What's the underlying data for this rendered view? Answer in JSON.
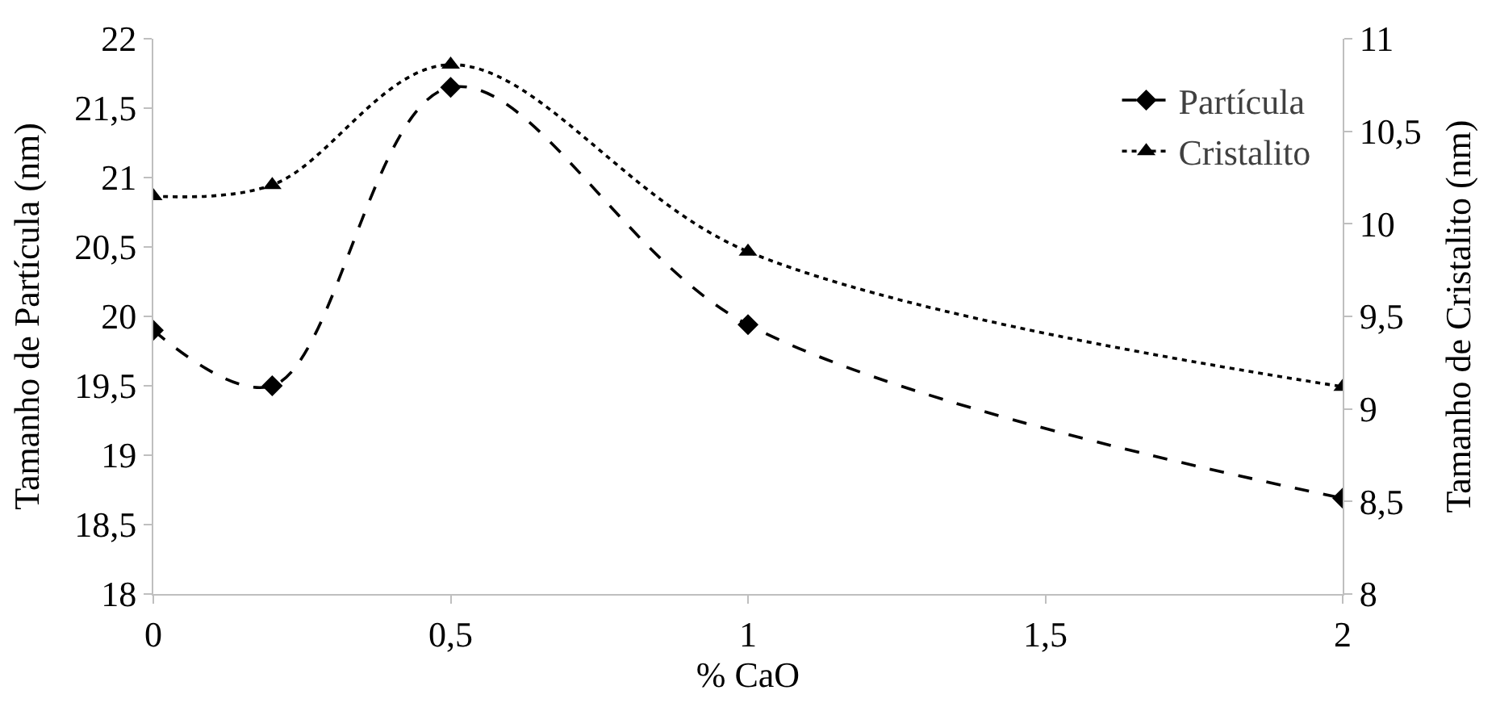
{
  "chart_data": {
    "type": "line",
    "xlabel": "% CaO",
    "ylabel": "Tamanho de Partícula (nm)",
    "y2label": "Tamanho de Cristalito (nm)",
    "x": [
      0,
      0.2,
      0.5,
      1,
      2
    ],
    "series": [
      {
        "name": "Partícula",
        "color": "#000000",
        "values": [
          19.9,
          19.5,
          21.65,
          19.94,
          18.69
        ],
        "marker": "diamond",
        "line_style": "dashed"
      },
      {
        "name": "Cristalito",
        "color": "#000000",
        "values": [
          10.15,
          10.21,
          10.86,
          9.85,
          9.12
        ],
        "marker": "triangle",
        "line_style": "dotted",
        "axis": "y2"
      }
    ],
    "xlim": [
      0,
      2
    ],
    "xticks": [
      0,
      {
        "value": 0.5,
        "label": "0,5"
      },
      1,
      {
        "value": 1.5,
        "label": "1,5"
      },
      2
    ],
    "ylim": [
      18,
      22
    ],
    "yticks": [
      18,
      {
        "value": 18.5,
        "label": "18,5"
      },
      19,
      {
        "value": 19.5,
        "label": "19,5"
      },
      20,
      {
        "value": 20.5,
        "label": "20,5"
      },
      21,
      {
        "value": 21.5,
        "label": "21,5"
      },
      22
    ],
    "y2lim": [
      8,
      11
    ],
    "y2ticks": [
      8,
      {
        "value": 8.5,
        "label": "8,5"
      },
      9,
      {
        "value": 9.5,
        "label": "9,5"
      },
      10,
      {
        "value": 10.5,
        "label": "10,5"
      },
      11
    ],
    "legend": "top right"
  }
}
